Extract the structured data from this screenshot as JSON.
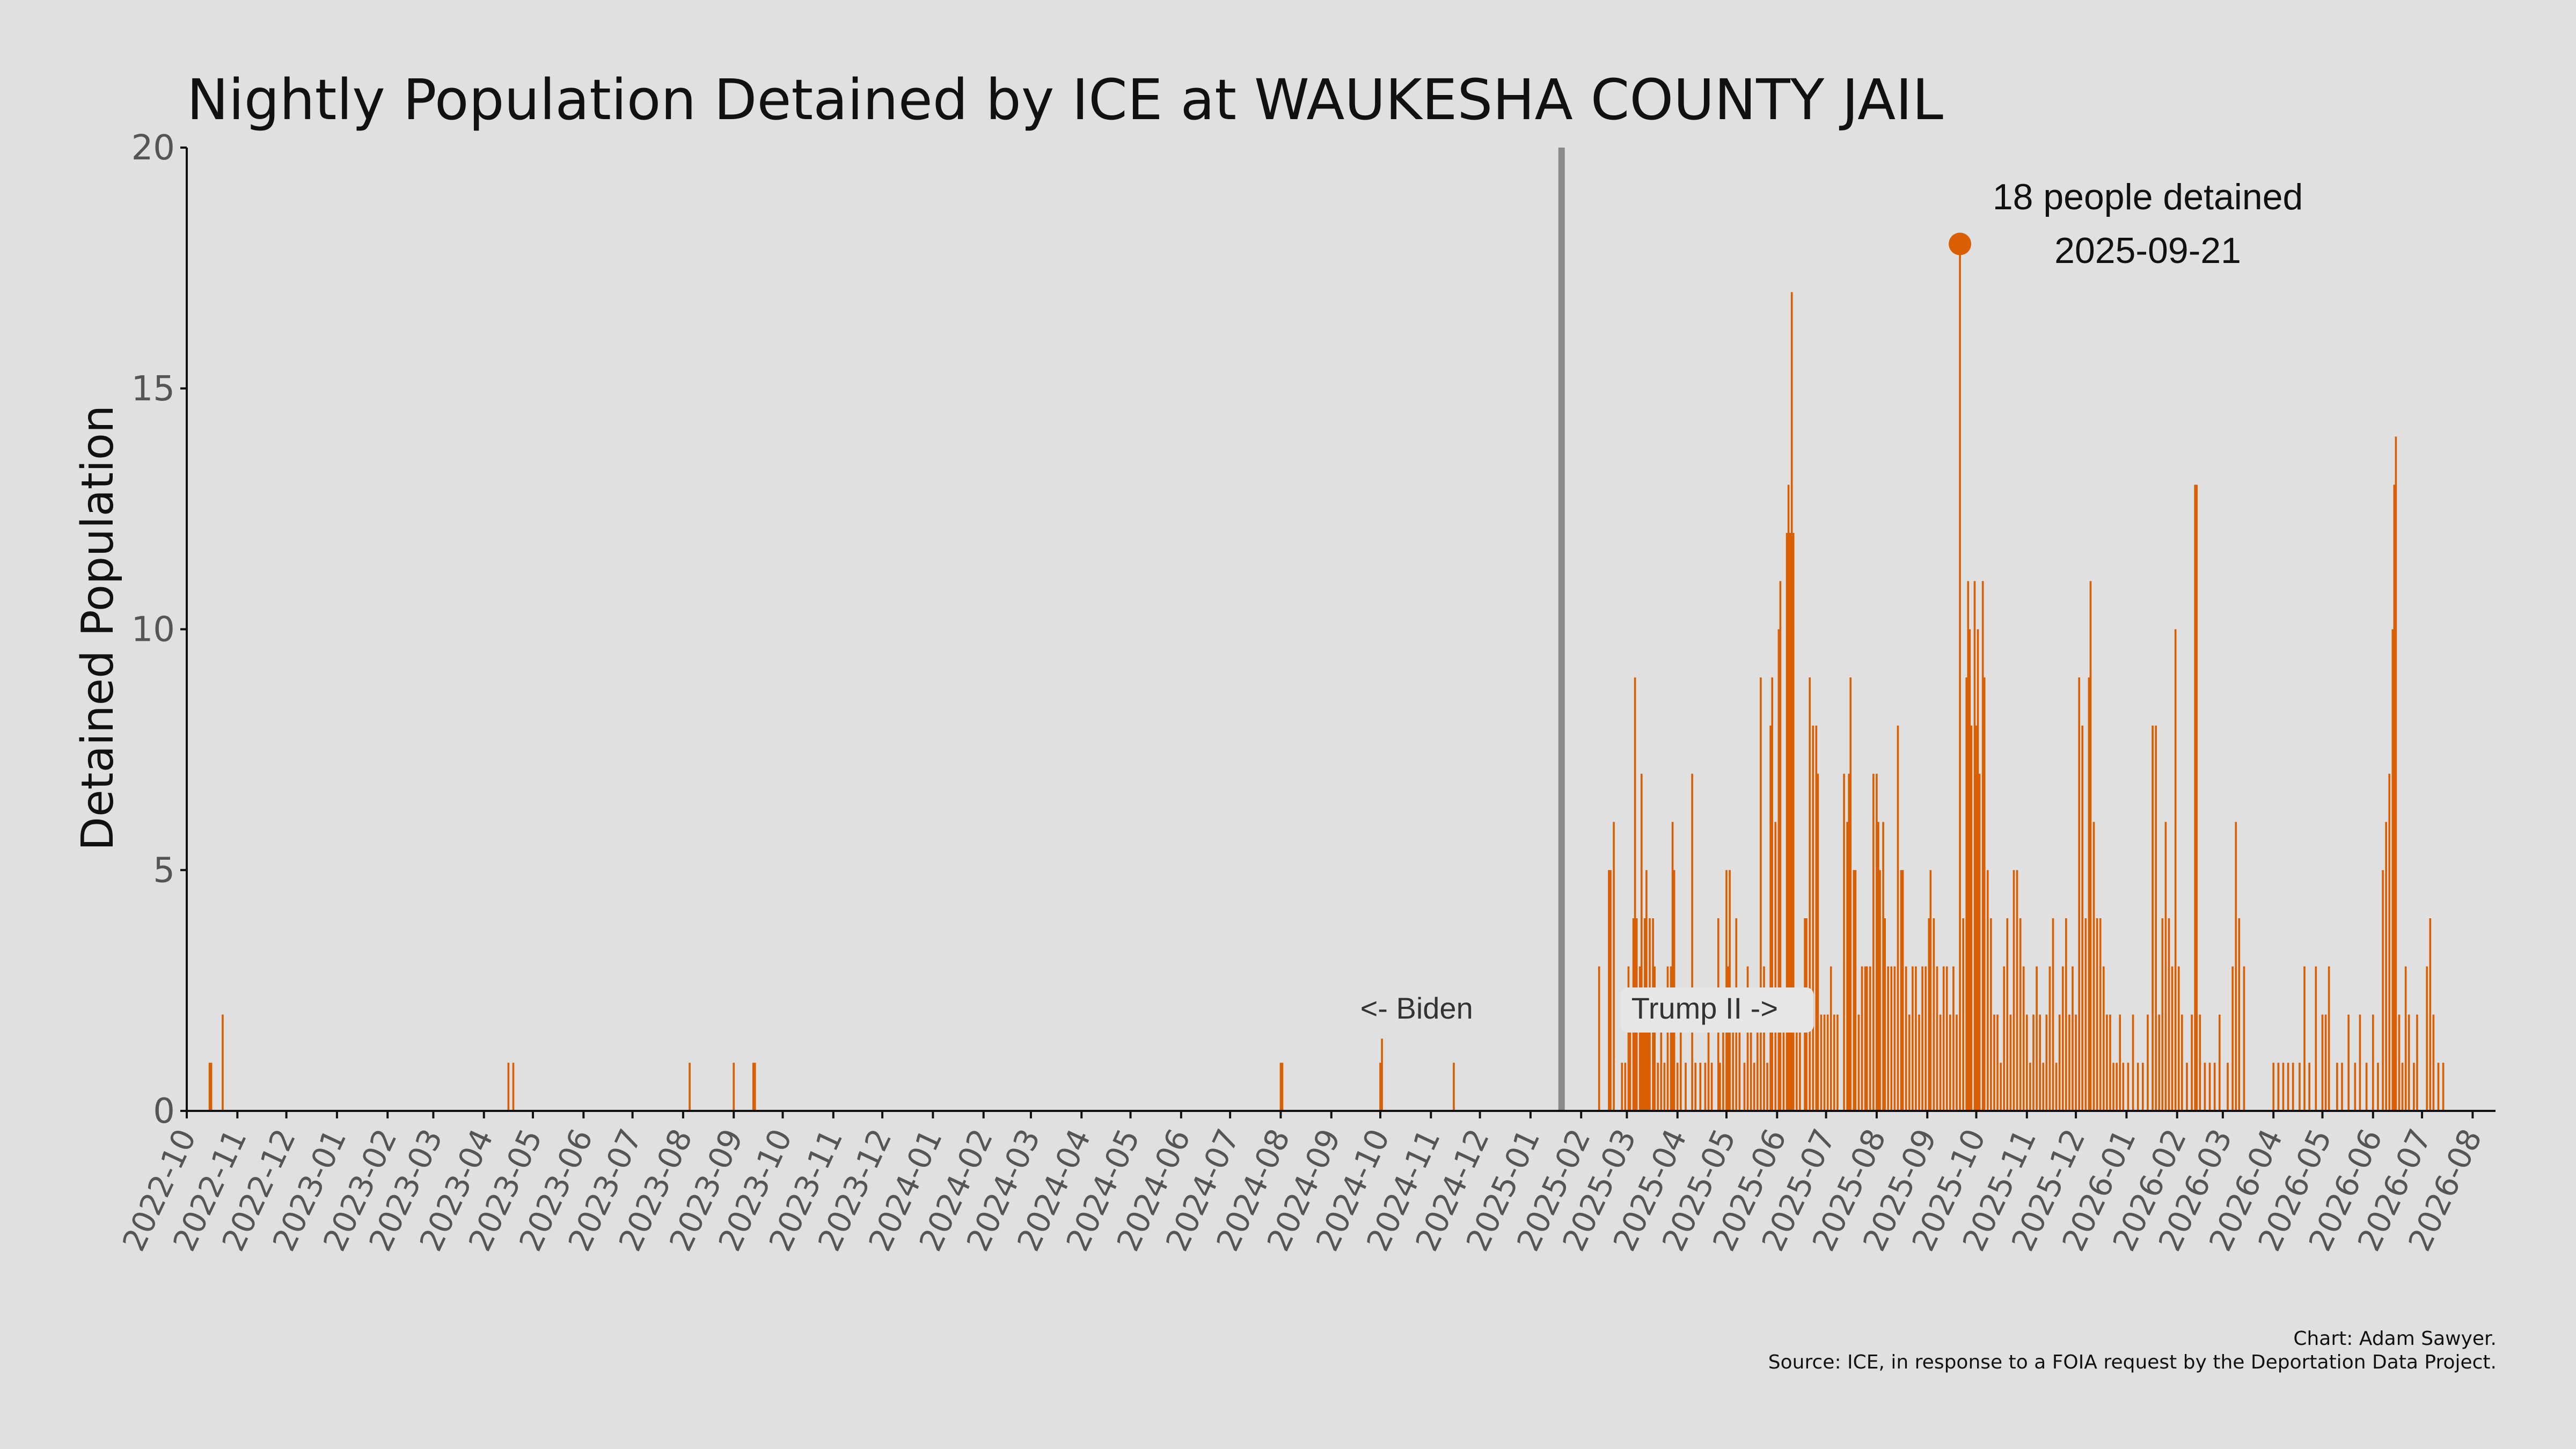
{
  "chart_data": {
    "type": "bar",
    "title": "Nightly Population Detained by ICE at WAUKESHA COUNTY JAIL",
    "xlabel": "",
    "ylabel": "Detained Population",
    "ylim": [
      0,
      20
    ],
    "yticks": [
      0,
      5,
      10,
      15,
      20
    ],
    "xlim": [
      "2022-10-01",
      "2026-08-15"
    ],
    "xticks": [
      "2022-10",
      "2022-11",
      "2022-12",
      "2023-01",
      "2023-02",
      "2023-03",
      "2023-04",
      "2023-05",
      "2023-06",
      "2023-07",
      "2023-08",
      "2023-09",
      "2023-10",
      "2023-11",
      "2023-12",
      "2024-01",
      "2024-02",
      "2024-03",
      "2024-04",
      "2024-05",
      "2024-06",
      "2024-07",
      "2024-08",
      "2024-09",
      "2024-10",
      "2024-11",
      "2024-12",
      "2025-01",
      "2025-02",
      "2025-03",
      "2025-04",
      "2025-05",
      "2025-06",
      "2025-07",
      "2025-08",
      "2025-09",
      "2025-10",
      "2025-11",
      "2025-12",
      "2026-01",
      "2026-02",
      "2026-03",
      "2026-04",
      "2026-05",
      "2026-06",
      "2026-07",
      "2026-08"
    ],
    "bar_color": "#d95f02",
    "divider_color": "#8a8a8a",
    "grid": false,
    "legend": "none",
    "divider_date": "2025-01-20",
    "series": [
      {
        "points": [
          [
            "2022-10-15",
            1
          ],
          [
            "2022-10-16",
            1
          ],
          [
            "2022-10-23",
            2
          ],
          [
            "2023-04-16",
            1
          ],
          [
            "2023-04-19",
            1
          ],
          [
            "2023-08-05",
            1
          ],
          [
            "2023-09-01",
            1
          ],
          [
            "2023-09-13",
            1
          ],
          [
            "2023-09-14",
            1
          ],
          [
            "2024-08-01",
            1
          ],
          [
            "2024-08-02",
            1
          ],
          [
            "2024-10-01",
            1
          ],
          [
            "2024-10-02",
            1.5
          ],
          [
            "2024-11-15",
            1
          ],
          [
            "2025-02-12",
            3
          ],
          [
            "2025-02-18",
            5
          ],
          [
            "2025-02-19",
            5
          ],
          [
            "2025-02-21",
            6
          ],
          [
            "2025-02-26",
            1
          ],
          [
            "2025-02-28",
            1
          ],
          [
            "2025-03-02",
            3
          ],
          [
            "2025-03-03",
            2
          ],
          [
            "2025-03-05",
            4
          ],
          [
            "2025-03-06",
            9
          ],
          [
            "2025-03-07",
            4
          ],
          [
            "2025-03-09",
            3
          ],
          [
            "2025-03-10",
            7
          ],
          [
            "2025-03-11",
            2
          ],
          [
            "2025-03-12",
            4
          ],
          [
            "2025-03-13",
            5
          ],
          [
            "2025-03-14",
            2
          ],
          [
            "2025-03-15",
            4
          ],
          [
            "2025-03-17",
            4
          ],
          [
            "2025-03-18",
            3
          ],
          [
            "2025-03-20",
            1
          ],
          [
            "2025-03-22",
            2
          ],
          [
            "2025-03-24",
            1
          ],
          [
            "2025-03-26",
            3
          ],
          [
            "2025-03-28",
            3
          ],
          [
            "2025-03-29",
            6
          ],
          [
            "2025-03-30",
            5
          ],
          [
            "2025-04-01",
            1
          ],
          [
            "2025-04-03",
            2
          ],
          [
            "2025-04-06",
            1
          ],
          [
            "2025-04-10",
            7
          ],
          [
            "2025-04-12",
            1
          ],
          [
            "2025-04-15",
            1
          ],
          [
            "2025-04-18",
            1
          ],
          [
            "2025-04-20",
            2
          ],
          [
            "2025-04-22",
            1
          ],
          [
            "2025-04-26",
            4
          ],
          [
            "2025-04-27",
            1
          ],
          [
            "2025-04-29",
            2
          ],
          [
            "2025-05-01",
            5
          ],
          [
            "2025-05-02",
            3
          ],
          [
            "2025-05-03",
            5
          ],
          [
            "2025-05-05",
            2
          ],
          [
            "2025-05-07",
            4
          ],
          [
            "2025-05-09",
            2
          ],
          [
            "2025-05-12",
            1
          ],
          [
            "2025-05-14",
            3
          ],
          [
            "2025-05-16",
            2
          ],
          [
            "2025-05-18",
            1
          ],
          [
            "2025-05-20",
            2
          ],
          [
            "2025-05-22",
            9
          ],
          [
            "2025-05-24",
            3
          ],
          [
            "2025-05-26",
            1
          ],
          [
            "2025-05-28",
            8
          ],
          [
            "2025-05-29",
            9
          ],
          [
            "2025-05-31",
            6
          ],
          [
            "2025-06-02",
            10
          ],
          [
            "2025-06-03",
            11
          ],
          [
            "2025-06-05",
            2
          ],
          [
            "2025-06-07",
            12
          ],
          [
            "2025-06-08",
            13
          ],
          [
            "2025-06-09",
            12
          ],
          [
            "2025-06-10",
            17
          ],
          [
            "2025-06-11",
            12
          ],
          [
            "2025-06-13",
            2
          ],
          [
            "2025-06-15",
            2
          ],
          [
            "2025-06-18",
            4
          ],
          [
            "2025-06-19",
            4
          ],
          [
            "2025-06-21",
            9
          ],
          [
            "2025-06-23",
            8
          ],
          [
            "2025-06-25",
            8
          ],
          [
            "2025-06-26",
            7
          ],
          [
            "2025-06-28",
            2
          ],
          [
            "2025-06-30",
            2
          ],
          [
            "2025-07-02",
            2
          ],
          [
            "2025-07-04",
            3
          ],
          [
            "2025-07-06",
            2
          ],
          [
            "2025-07-08",
            2
          ],
          [
            "2025-07-12",
            7
          ],
          [
            "2025-07-14",
            6
          ],
          [
            "2025-07-15",
            7
          ],
          [
            "2025-07-16",
            9
          ],
          [
            "2025-07-18",
            5
          ],
          [
            "2025-07-19",
            5
          ],
          [
            "2025-07-21",
            2
          ],
          [
            "2025-07-23",
            3
          ],
          [
            "2025-07-25",
            3
          ],
          [
            "2025-07-26",
            3
          ],
          [
            "2025-07-28",
            3
          ],
          [
            "2025-07-30",
            7
          ],
          [
            "2025-08-01",
            7
          ],
          [
            "2025-08-02",
            6
          ],
          [
            "2025-08-03",
            5
          ],
          [
            "2025-08-05",
            6
          ],
          [
            "2025-08-06",
            4
          ],
          [
            "2025-08-08",
            3
          ],
          [
            "2025-08-10",
            3
          ],
          [
            "2025-08-12",
            3
          ],
          [
            "2025-08-14",
            8
          ],
          [
            "2025-08-16",
            5
          ],
          [
            "2025-08-17",
            5
          ],
          [
            "2025-08-19",
            3
          ],
          [
            "2025-08-21",
            2
          ],
          [
            "2025-08-23",
            3
          ],
          [
            "2025-08-25",
            3
          ],
          [
            "2025-08-27",
            2
          ],
          [
            "2025-08-29",
            3
          ],
          [
            "2025-08-31",
            3
          ],
          [
            "2025-09-02",
            4
          ],
          [
            "2025-09-03",
            5
          ],
          [
            "2025-09-05",
            4
          ],
          [
            "2025-09-07",
            3
          ],
          [
            "2025-09-09",
            2
          ],
          [
            "2025-09-11",
            3
          ],
          [
            "2025-09-13",
            3
          ],
          [
            "2025-09-15",
            2
          ],
          [
            "2025-09-17",
            3
          ],
          [
            "2025-09-19",
            2
          ],
          [
            "2025-09-21",
            18
          ],
          [
            "2025-09-23",
            4
          ],
          [
            "2025-09-25",
            9
          ],
          [
            "2025-09-26",
            11
          ],
          [
            "2025-09-27",
            10
          ],
          [
            "2025-09-28",
            8
          ],
          [
            "2025-09-30",
            11
          ],
          [
            "2025-10-01",
            8
          ],
          [
            "2025-10-02",
            10
          ],
          [
            "2025-10-03",
            7
          ],
          [
            "2025-10-05",
            11
          ],
          [
            "2025-10-06",
            9
          ],
          [
            "2025-10-08",
            5
          ],
          [
            "2025-10-10",
            4
          ],
          [
            "2025-10-12",
            2
          ],
          [
            "2025-10-14",
            2
          ],
          [
            "2025-10-16",
            1
          ],
          [
            "2025-10-18",
            3
          ],
          [
            "2025-10-20",
            4
          ],
          [
            "2025-10-22",
            2
          ],
          [
            "2025-10-24",
            5
          ],
          [
            "2025-10-26",
            5
          ],
          [
            "2025-10-28",
            4
          ],
          [
            "2025-10-30",
            3
          ],
          [
            "2025-11-01",
            2
          ],
          [
            "2025-11-03",
            1
          ],
          [
            "2025-11-05",
            2
          ],
          [
            "2025-11-07",
            3
          ],
          [
            "2025-11-09",
            2
          ],
          [
            "2025-11-11",
            1
          ],
          [
            "2025-11-13",
            2
          ],
          [
            "2025-11-15",
            3
          ],
          [
            "2025-11-17",
            4
          ],
          [
            "2025-11-19",
            1
          ],
          [
            "2025-11-21",
            2
          ],
          [
            "2025-11-23",
            3
          ],
          [
            "2025-11-25",
            4
          ],
          [
            "2025-11-27",
            2
          ],
          [
            "2025-11-29",
            3
          ],
          [
            "2025-12-01",
            2
          ],
          [
            "2025-12-03",
            9
          ],
          [
            "2025-12-05",
            8
          ],
          [
            "2025-12-07",
            4
          ],
          [
            "2025-12-09",
            9
          ],
          [
            "2025-12-10",
            11
          ],
          [
            "2025-12-12",
            6
          ],
          [
            "2025-12-14",
            4
          ],
          [
            "2025-12-16",
            4
          ],
          [
            "2025-12-18",
            3
          ],
          [
            "2025-12-20",
            2
          ],
          [
            "2025-12-22",
            2
          ],
          [
            "2025-12-24",
            1
          ],
          [
            "2025-12-26",
            1
          ],
          [
            "2025-12-28",
            2
          ],
          [
            "2025-12-30",
            1
          ],
          [
            "2026-01-02",
            1
          ],
          [
            "2026-01-05",
            2
          ],
          [
            "2026-01-08",
            1
          ],
          [
            "2026-01-11",
            1
          ],
          [
            "2026-01-14",
            2
          ],
          [
            "2026-01-17",
            8
          ],
          [
            "2026-01-19",
            8
          ],
          [
            "2026-01-21",
            2
          ],
          [
            "2026-01-23",
            4
          ],
          [
            "2026-01-25",
            6
          ],
          [
            "2026-01-27",
            4
          ],
          [
            "2026-01-29",
            3
          ],
          [
            "2026-01-31",
            10
          ],
          [
            "2026-02-02",
            3
          ],
          [
            "2026-02-04",
            2
          ],
          [
            "2026-02-07",
            1
          ],
          [
            "2026-02-10",
            2
          ],
          [
            "2026-02-12",
            13
          ],
          [
            "2026-02-13",
            13
          ],
          [
            "2026-02-15",
            2
          ],
          [
            "2026-02-18",
            1
          ],
          [
            "2026-02-21",
            1
          ],
          [
            "2026-02-24",
            1
          ],
          [
            "2026-02-27",
            2
          ],
          [
            "2026-03-04",
            1
          ],
          [
            "2026-03-07",
            3
          ],
          [
            "2026-03-09",
            6
          ],
          [
            "2026-03-11",
            4
          ],
          [
            "2026-03-14",
            3
          ],
          [
            "2026-04-01",
            1
          ],
          [
            "2026-04-04",
            1
          ],
          [
            "2026-04-07",
            1
          ],
          [
            "2026-04-10",
            1
          ],
          [
            "2026-04-13",
            1
          ],
          [
            "2026-04-17",
            1
          ],
          [
            "2026-04-20",
            3
          ],
          [
            "2026-04-23",
            1
          ],
          [
            "2026-04-27",
            3
          ],
          [
            "2026-05-01",
            2
          ],
          [
            "2026-05-03",
            2
          ],
          [
            "2026-05-05",
            3
          ],
          [
            "2026-05-10",
            1
          ],
          [
            "2026-05-13",
            1
          ],
          [
            "2026-05-17",
            2
          ],
          [
            "2026-05-21",
            1
          ],
          [
            "2026-05-24",
            2
          ],
          [
            "2026-05-28",
            1
          ],
          [
            "2026-06-01",
            2
          ],
          [
            "2026-06-04",
            1
          ],
          [
            "2026-06-07",
            5
          ],
          [
            "2026-06-09",
            6
          ],
          [
            "2026-06-11",
            7
          ],
          [
            "2026-06-13",
            10
          ],
          [
            "2026-06-14",
            13
          ],
          [
            "2026-06-15",
            14
          ],
          [
            "2026-06-17",
            2
          ],
          [
            "2026-06-19",
            1
          ],
          [
            "2026-06-21",
            3
          ],
          [
            "2026-06-23",
            2
          ],
          [
            "2026-06-26",
            1
          ],
          [
            "2026-06-28",
            2
          ],
          [
            "2026-07-04",
            3
          ],
          [
            "2026-07-06",
            4
          ],
          [
            "2026-07-08",
            2
          ],
          [
            "2026-07-11",
            1
          ],
          [
            "2026-07-14",
            1
          ]
        ]
      }
    ],
    "annotations": {
      "peak_text": "18 people detained",
      "peak_date_text": "2025-09-21",
      "peak_point": [
        "2025-09-21",
        18
      ],
      "biden_label": "<- Biden",
      "trump_label": "Trump II ->"
    }
  },
  "credits": {
    "line1": "Chart: Adam Sawyer.",
    "line2": "Source: ICE, in response to a FOIA request by the Deportation Data Project."
  }
}
